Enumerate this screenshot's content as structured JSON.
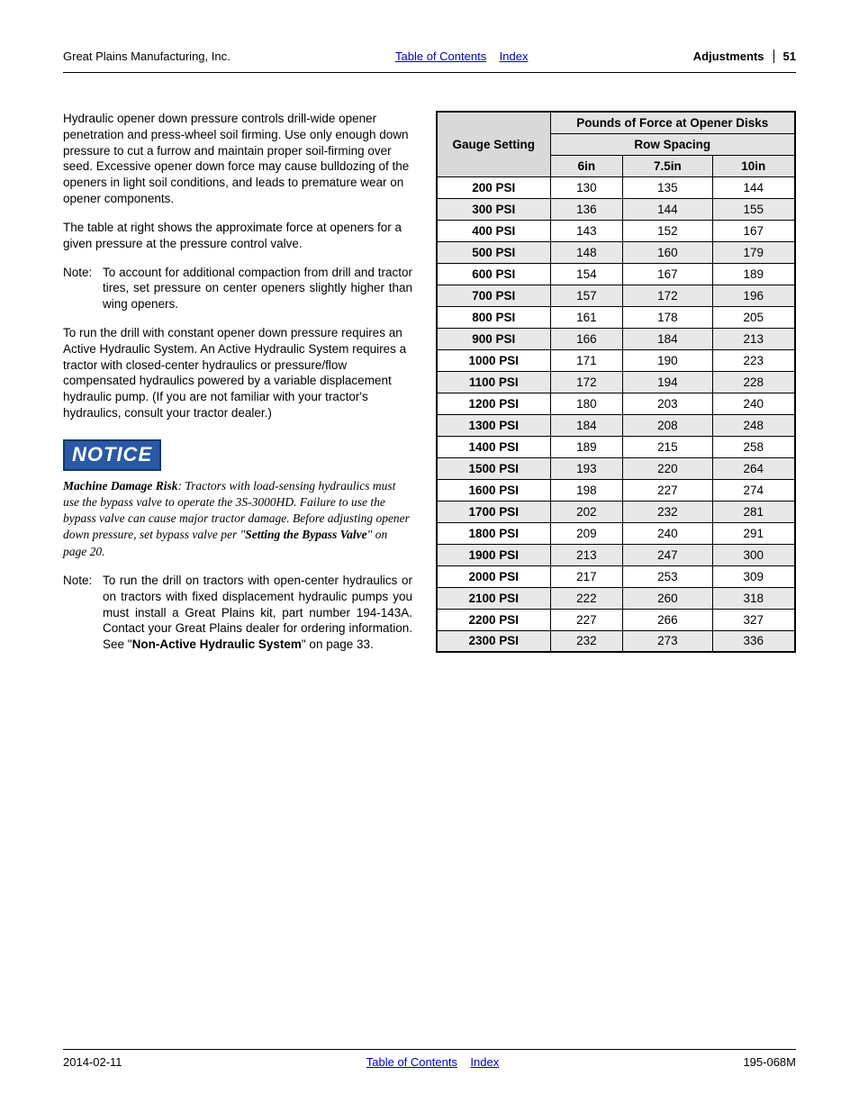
{
  "header": {
    "company": "Great Plains Manufacturing, Inc.",
    "toc": "Table of Contents",
    "index": "Index",
    "section": "Adjustments",
    "page": "51"
  },
  "body": {
    "p1": "Hydraulic opener down pressure controls drill-wide opener penetration and press-wheel soil firming. Use only enough down pressure to cut a furrow and maintain proper soil-firming over seed. Excessive opener down force may cause bulldozing of the openers in light soil conditions, and leads to premature wear on opener components.",
    "p2": "The table at right shows the approximate force at openers for a given pressure at the pressure control valve.",
    "note1_label": "Note:",
    "note1_body": "To account for additional compaction from drill and tractor tires, set pressure on center openers slightly higher than wing openers.",
    "p3": "To run the drill with constant opener down pressure requires an Active Hydraulic System. An Active Hydraulic System requires a tractor with closed-center hydraulics or pressure/flow compensated hydraulics powered by a variable displacement hydraulic pump. (If you are not familiar with your tractor's hydraulics, consult your tractor dealer.)",
    "notice_badge": "NOTICE",
    "notice_lead": "Machine Damage Risk",
    "notice_rest": ": Tractors with load-sensing hydraulics must use the bypass valve to operate the 3S-3000HD. Failure to use the bypass valve can cause major tractor damage. Before adjusting opener down pressure, set bypass valve per \"",
    "notice_ref": "Setting the Bypass Valve",
    "notice_tail": "\" on page 20.",
    "note2_label": "Note:",
    "note2_body_a": "To run the drill on tractors with open-center hydraulics or on tractors with fixed displacement hydraulic pumps you must install a Great Plains kit, part number 194-143A. Contact your Great Plains dealer for ordering information. See \"",
    "note2_body_bold": "Non-Active Hydraulic System",
    "note2_body_b": "\" on page 33."
  },
  "table": {
    "col_header_main": "Pounds of Force at Opener Disks",
    "gauge_header": "Gauge Setting",
    "row_spacing_header": "Row Spacing",
    "col_6": "6in",
    "col_75": "7.5in",
    "col_10": "10in",
    "rows": [
      {
        "psi": "200 PSI",
        "a": "130",
        "b": "135",
        "c": "144",
        "shade": false
      },
      {
        "psi": "300 PSI",
        "a": "136",
        "b": "144",
        "c": "155",
        "shade": true
      },
      {
        "psi": "400 PSI",
        "a": "143",
        "b": "152",
        "c": "167",
        "shade": false
      },
      {
        "psi": "500 PSI",
        "a": "148",
        "b": "160",
        "c": "179",
        "shade": true
      },
      {
        "psi": "600 PSI",
        "a": "154",
        "b": "167",
        "c": "189",
        "shade": false
      },
      {
        "psi": "700 PSI",
        "a": "157",
        "b": "172",
        "c": "196",
        "shade": true
      },
      {
        "psi": "800 PSI",
        "a": "161",
        "b": "178",
        "c": "205",
        "shade": false
      },
      {
        "psi": "900 PSI",
        "a": "166",
        "b": "184",
        "c": "213",
        "shade": true
      },
      {
        "psi": "1000 PSI",
        "a": "171",
        "b": "190",
        "c": "223",
        "shade": false
      },
      {
        "psi": "1100 PSI",
        "a": "172",
        "b": "194",
        "c": "228",
        "shade": true
      },
      {
        "psi": "1200 PSI",
        "a": "180",
        "b": "203",
        "c": "240",
        "shade": false
      },
      {
        "psi": "1300 PSI",
        "a": "184",
        "b": "208",
        "c": "248",
        "shade": true
      },
      {
        "psi": "1400 PSI",
        "a": "189",
        "b": "215",
        "c": "258",
        "shade": false
      },
      {
        "psi": "1500 PSI",
        "a": "193",
        "b": "220",
        "c": "264",
        "shade": true
      },
      {
        "psi": "1600 PSI",
        "a": "198",
        "b": "227",
        "c": "274",
        "shade": false
      },
      {
        "psi": "1700 PSI",
        "a": "202",
        "b": "232",
        "c": "281",
        "shade": true
      },
      {
        "psi": "1800 PSI",
        "a": "209",
        "b": "240",
        "c": "291",
        "shade": false
      },
      {
        "psi": "1900 PSI",
        "a": "213",
        "b": "247",
        "c": "300",
        "shade": true
      },
      {
        "psi": "2000 PSI",
        "a": "217",
        "b": "253",
        "c": "309",
        "shade": false
      },
      {
        "psi": "2100 PSI",
        "a": "222",
        "b": "260",
        "c": "318",
        "shade": true
      },
      {
        "psi": "2200 PSI",
        "a": "227",
        "b": "266",
        "c": "327",
        "shade": false
      },
      {
        "psi": "2300 PSI",
        "a": "232",
        "b": "273",
        "c": "336",
        "shade": true
      }
    ]
  },
  "footer": {
    "date": "2014-02-11",
    "toc": "Table of Contents",
    "index": "Index",
    "doc": "195-068M"
  },
  "colors": {
    "link": "#0000cc",
    "notice_bg": "#2959a6",
    "notice_border": "#163766",
    "shade_hdr": "#e3e3e3",
    "shade_row": "#e8e8e8"
  }
}
